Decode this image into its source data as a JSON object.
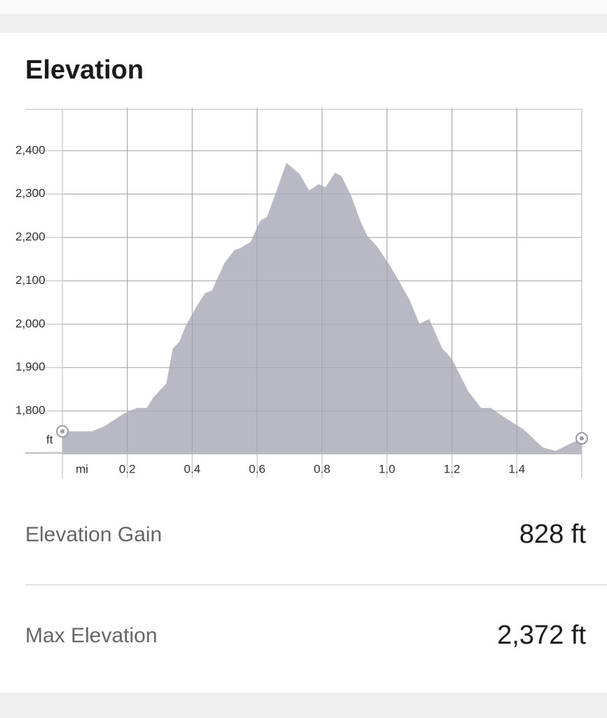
{
  "header": {
    "title": "Elevation"
  },
  "chart_data": {
    "type": "area",
    "xlabel": "mi",
    "ylabel": "ft",
    "color": "#b9b9c5",
    "grid": true,
    "xlim": [
      0,
      1.6
    ],
    "ylim": [
      1700,
      2500
    ],
    "xticks": [
      0.2,
      0.4,
      0.6,
      0.8,
      {
        "value": 1,
        "label": "1.0"
      },
      1.2,
      1.4
    ],
    "yticks": [
      {
        "value": 1800,
        "label": "1,800"
      },
      {
        "value": 1900,
        "label": "1,900"
      },
      {
        "value": 2000,
        "label": "2,000"
      },
      {
        "value": 2100,
        "label": "2,100"
      },
      {
        "value": 2200,
        "label": "2,200"
      },
      {
        "value": 2300,
        "label": "2,300"
      },
      {
        "value": 2400,
        "label": "2,400"
      }
    ],
    "x": [
      0,
      0.09,
      0.13,
      0.19,
      0.23,
      0.26,
      0.28,
      0.32,
      0.34,
      0.36,
      0.38,
      0.41,
      0.44,
      0.46,
      0.5,
      0.53,
      0.55,
      0.58,
      0.61,
      0.63,
      0.66,
      0.69,
      0.73,
      0.76,
      0.79,
      0.81,
      0.84,
      0.86,
      0.89,
      0.92,
      0.94,
      0.97,
      1.01,
      1.05,
      1.07,
      1.1,
      1.13,
      1.17,
      1.2,
      1.25,
      1.29,
      1.32,
      1.36,
      1.42,
      1.48,
      1.52,
      1.56,
      1.6
    ],
    "values": [
      1753,
      1753,
      1765,
      1794,
      1807,
      1807,
      1831,
      1863,
      1944,
      1959,
      1996,
      2037,
      2072,
      2077,
      2142,
      2171,
      2176,
      2190,
      2239,
      2247,
      2308,
      2372,
      2347,
      2308,
      2323,
      2315,
      2349,
      2341,
      2295,
      2234,
      2203,
      2179,
      2134,
      2082,
      2056,
      2001,
      2012,
      1944,
      1920,
      1846,
      1807,
      1807,
      1786,
      1758,
      1716,
      1708,
      1723,
      1737
    ]
  },
  "stats": [
    {
      "label": "Elevation Gain",
      "value": "828 ft"
    },
    {
      "label": "Max Elevation",
      "value": "2,372 ft"
    }
  ]
}
